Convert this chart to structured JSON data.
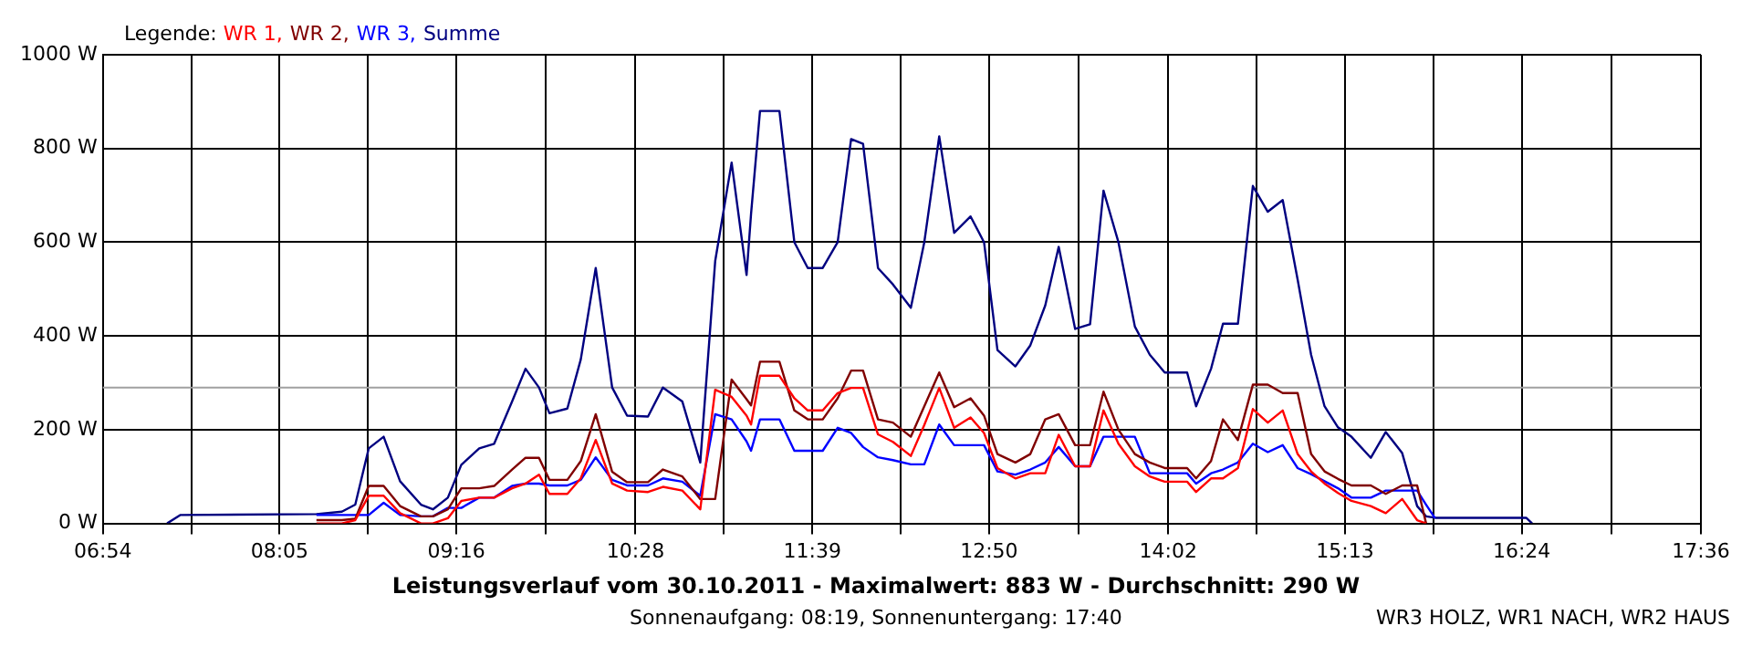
{
  "chart_data": {
    "type": "line",
    "title": "Leistungsverlauf vom 30.10.2011 - Maximalwert: 883 W - Durchschnitt: 290 W",
    "subtitle": "Sonnenaufgang: 08:19, Sonnenuntergang: 17:40",
    "legend_title": "Legende:",
    "annotations": [
      "WR3 HOLZ, WR1 NACH, WR2 HAUS"
    ],
    "x": [
      7.33,
      7.42,
      8.33,
      8.5,
      8.59,
      8.68,
      8.78,
      8.89,
      9.03,
      9.11,
      9.21,
      9.3,
      9.42,
      9.52,
      9.64,
      9.73,
      9.82,
      9.89,
      10.01,
      10.1,
      10.2,
      10.31,
      10.41,
      10.55,
      10.65,
      10.78,
      10.9,
      11.0,
      11.11,
      11.21,
      11.24,
      11.3,
      11.43,
      11.53,
      11.62,
      11.72,
      11.82,
      11.91,
      11.99,
      12.09,
      12.19,
      12.31,
      12.4,
      12.5,
      12.6,
      12.71,
      12.8,
      12.89,
      13.01,
      13.11,
      13.21,
      13.3,
      13.41,
      13.51,
      13.6,
      13.7,
      13.81,
      13.91,
      14.01,
      14.16,
      14.22,
      14.32,
      14.4,
      14.5,
      14.6,
      14.7,
      14.8,
      14.9,
      14.99,
      15.08,
      15.17,
      15.26,
      15.39,
      15.49,
      15.6,
      15.7,
      15.76,
      15.82,
      16.43,
      16.47
    ],
    "series": [
      {
        "name": "WR 1,",
        "color": "#ff0000",
        "values": [
          null,
          null,
          0,
          0,
          7,
          59,
          59,
          22,
          0,
          0,
          11,
          48,
          55,
          55,
          75,
          85,
          104,
          63,
          63,
          96,
          178,
          85,
          70,
          67,
          78,
          70,
          30,
          285,
          270,
          230,
          211,
          315,
          315,
          267,
          241,
          241,
          278,
          289,
          289,
          190,
          174,
          144,
          210,
          289,
          204,
          226,
          193,
          118,
          96,
          107,
          107,
          189,
          122,
          122,
          241,
          170,
          122,
          100,
          89,
          89,
          67,
          96,
          96,
          118,
          244,
          215,
          241,
          148,
          111,
          85,
          65,
          48,
          37,
          22,
          52,
          7,
          0,
          null,
          null,
          null
        ]
      },
      {
        "name": "WR 2,",
        "color": "#800000",
        "values": [
          null,
          null,
          7,
          7,
          10,
          80,
          80,
          37,
          15,
          15,
          30,
          75,
          75,
          80,
          115,
          140,
          140,
          93,
          93,
          133,
          233,
          110,
          88,
          88,
          115,
          100,
          52,
          52,
          307,
          265,
          252,
          345,
          345,
          241,
          222,
          222,
          267,
          326,
          326,
          222,
          215,
          185,
          250,
          322,
          248,
          267,
          230,
          148,
          130,
          148,
          222,
          233,
          167,
          167,
          281,
          200,
          148,
          130,
          118,
          118,
          96,
          133,
          222,
          178,
          296,
          296,
          278,
          278,
          148,
          111,
          95,
          81,
          81,
          63,
          81,
          81,
          0,
          null,
          null,
          null
        ]
      },
      {
        "name": "WR 3,",
        "color": "#0000ff",
        "values": [
          null,
          null,
          18,
          18,
          18,
          18,
          44,
          18,
          15,
          15,
          33,
          33,
          55,
          55,
          80,
          85,
          85,
          81,
          81,
          93,
          141,
          93,
          81,
          81,
          96,
          89,
          59,
          233,
          222,
          175,
          155,
          222,
          222,
          155,
          155,
          155,
          204,
          193,
          163,
          141,
          135,
          126,
          126,
          211,
          167,
          167,
          167,
          111,
          104,
          115,
          130,
          163,
          122,
          122,
          185,
          185,
          185,
          107,
          107,
          107,
          85,
          107,
          115,
          130,
          170,
          152,
          167,
          118,
          105,
          90,
          75,
          55,
          55,
          70,
          70,
          70,
          40,
          11,
          null,
          null
        ]
      },
      {
        "name": "Summe",
        "color": "#000080",
        "values": [
          0,
          18,
          20,
          25,
          40,
          160,
          185,
          90,
          40,
          30,
          55,
          125,
          160,
          170,
          260,
          330,
          290,
          235,
          245,
          350,
          545,
          290,
          230,
          228,
          290,
          260,
          130,
          560,
          770,
          530,
          660,
          880,
          880,
          600,
          545,
          545,
          600,
          820,
          810,
          545,
          510,
          460,
          600,
          826,
          620,
          655,
          600,
          370,
          335,
          380,
          465,
          590,
          415,
          425,
          710,
          600,
          420,
          360,
          322,
          322,
          250,
          330,
          426,
          426,
          720,
          665,
          690,
          520,
          360,
          250,
          205,
          185,
          140,
          195,
          150,
          37,
          15,
          12,
          12,
          0
        ]
      }
    ],
    "xlim": [
      6.9,
      17.6
    ],
    "xticks": [
      {
        "value": 6.9,
        "label": "06:54"
      },
      {
        "value": 7.492,
        "label": null
      },
      {
        "value": 8.0833,
        "label": "08:05"
      },
      {
        "value": 8.675,
        "label": null
      },
      {
        "value": 9.2667,
        "label": "09:16"
      },
      {
        "value": 9.867,
        "label": null
      },
      {
        "value": 10.4667,
        "label": "10:28"
      },
      {
        "value": 11.058,
        "label": null
      },
      {
        "value": 11.65,
        "label": "11:39"
      },
      {
        "value": 12.242,
        "label": null
      },
      {
        "value": 12.8333,
        "label": "12:50"
      },
      {
        "value": 13.433,
        "label": null
      },
      {
        "value": 14.0333,
        "label": "14:02"
      },
      {
        "value": 14.625,
        "label": null
      },
      {
        "value": 15.2167,
        "label": "15:13"
      },
      {
        "value": 15.808,
        "label": null
      },
      {
        "value": 16.4,
        "label": "16:24"
      },
      {
        "value": 17.0,
        "label": null
      },
      {
        "value": 17.6,
        "label": "17:36"
      }
    ],
    "ylim": [
      0,
      1000
    ],
    "yticks": [
      {
        "value": 0,
        "label": "0 W"
      },
      {
        "value": 200,
        "label": "200 W"
      },
      {
        "value": 400,
        "label": "400 W"
      },
      {
        "value": 600,
        "label": "600 W"
      },
      {
        "value": 800,
        "label": "800 W"
      },
      {
        "value": 1000,
        "label": "1000 W"
      }
    ],
    "ref_lines": [
      {
        "axis": "y",
        "value": 290,
        "color": "#a0a0a0"
      }
    ],
    "grid": true,
    "legend": "top left",
    "marker": "none",
    "line_style": "solid"
  }
}
